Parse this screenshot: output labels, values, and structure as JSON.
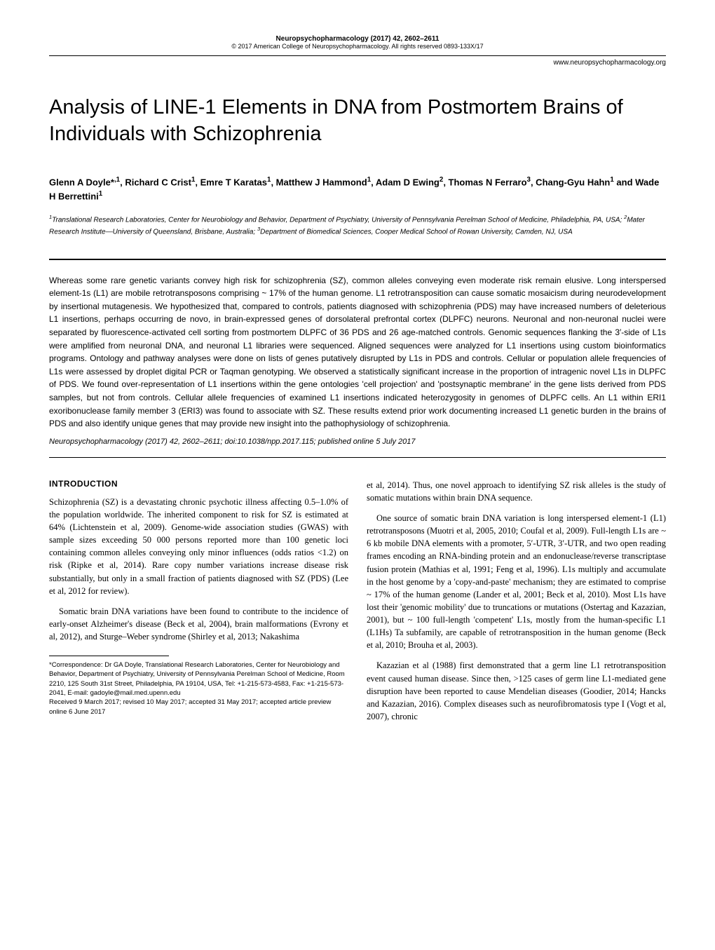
{
  "header": {
    "journal_ref": "Neuropsychopharmacology (2017) 42, 2602–2611",
    "copyright": "© 2017 American College of Neuropsychopharmacology. All rights reserved 0893-133X/17",
    "url": "www.neuropsychopharmacology.org"
  },
  "title": "Analysis of LINE-1 Elements in DNA from Postmortem Brains of Individuals with Schizophrenia",
  "authors_html": "Glenn A Doyle*,1, Richard C Crist1, Emre T Karatas1, Matthew J Hammond1, Adam D Ewing2, Thomas N Ferraro3, Chang-Gyu Hahn1 and Wade H Berrettini1",
  "affiliations": "1Translational Research Laboratories, Center for Neurobiology and Behavior, Department of Psychiatry, University of Pennsylvania Perelman School of Medicine, Philadelphia, PA, USA; 2Mater Research Institute—University of Queensland, Brisbane, Australia; 3Department of Biomedical Sciences, Cooper Medical School of Rowan University, Camden, NJ, USA",
  "abstract": "Whereas some rare genetic variants convey high risk for schizophrenia (SZ), common alleles conveying even moderate risk remain elusive. Long interspersed element-1s (L1) are mobile retrotransposons comprising ~ 17% of the human genome. L1 retrotransposition can cause somatic mosaicism during neurodevelopment by insertional mutagenesis. We hypothesized that, compared to controls, patients diagnosed with schizophrenia (PDS) may have increased numbers of deleterious L1 insertions, perhaps occurring de novo, in brain-expressed genes of dorsolateral prefrontal cortex (DLPFC) neurons. Neuronal and non-neuronal nuclei were separated by fluorescence-activated cell sorting from postmortem DLPFC of 36 PDS and 26 age-matched controls. Genomic sequences flanking the 3′-side of L1s were amplified from neuronal DNA, and neuronal L1 libraries were sequenced. Aligned sequences were analyzed for L1 insertions using custom bioinformatics programs. Ontology and pathway analyses were done on lists of genes putatively disrupted by L1s in PDS and controls. Cellular or population allele frequencies of L1s were assessed by droplet digital PCR or Taqman genotyping. We observed a statistically significant increase in the proportion of intragenic novel L1s in DLPFC of PDS. We found over-representation of L1 insertions within the gene ontologies 'cell projection' and 'postsynaptic membrane' in the gene lists derived from PDS samples, but not from controls. Cellular allele frequencies of examined L1 insertions indicated heterozygosity in genomes of DLPFC cells. An L1 within ERI1 exoribonuclease family member 3 (ERI3) was found to associate with SZ. These results extend prior work documenting increased L1 genetic burden in the brains of PDS and also identify unique genes that may provide new insight into the pathophysiology of schizophrenia.",
  "citation": "Neuropsychopharmacology (2017) 42, 2602–2611; doi:10.1038/npp.2017.115; published online 5 July 2017",
  "intro_heading": "INTRODUCTION",
  "intro": {
    "p1": "Schizophrenia (SZ) is a devastating chronic psychotic illness affecting 0.5–1.0% of the population worldwide. The inherited component to risk for SZ is estimated at 64% (Lichtenstein et al, 2009). Genome-wide association studies (GWAS) with sample sizes exceeding 50 000 persons reported more than 100 genetic loci containing common alleles conveying only minor influences (odds ratios <1.2) on risk (Ripke et al, 2014). Rare copy number variations increase disease risk substantially, but only in a small fraction of patients diagnosed with SZ (PDS) (Lee et al, 2012 for review).",
    "p2": "Somatic brain DNA variations have been found to contribute to the incidence of early-onset Alzheimer's disease (Beck et al, 2004), brain malformations (Evrony et al, 2012), and Sturge–Weber syndrome (Shirley et al, 2013; Nakashima",
    "p3": "et al, 2014). Thus, one novel approach to identifying SZ risk alleles is the study of somatic mutations within brain DNA sequence.",
    "p4": "One source of somatic brain DNA variation is long interspersed element-1 (L1) retrotransposons (Muotri et al, 2005, 2010; Coufal et al, 2009). Full-length L1s are ~ 6 kb mobile DNA elements with a promoter, 5′-UTR, 3′-UTR, and two open reading frames encoding an RNA-binding protein and an endonuclease/reverse transcriptase fusion protein (Mathias et al, 1991; Feng et al, 1996). L1s multiply and accumulate in the host genome by a 'copy-and-paste' mechanism; they are estimated to comprise ~ 17% of the human genome (Lander et al, 2001; Beck et al, 2010). Most L1s have lost their 'genomic mobility' due to truncations or mutations (Ostertag and Kazazian, 2001), but ~ 100 full-length 'competent' L1s, mostly from the human-specific L1 (L1Hs) Ta subfamily, are capable of retrotransposition in the human genome (Beck et al, 2010; Brouha et al, 2003).",
    "p5": "Kazazian et al (1988) first demonstrated that a germ line L1 retrotransposition event caused human disease. Since then, >125 cases of germ line L1-mediated gene disruption have been reported to cause Mendelian diseases (Goodier, 2014; Hancks and Kazazian, 2016). Complex diseases such as neurofibromatosis type I (Vogt et al, 2007), chronic"
  },
  "footnote": {
    "correspondence": "*Correspondence: Dr GA Doyle, Translational Research Laboratories, Center for Neurobiology and Behavior, Department of Psychiatry, University of Pennsylvania Perelman School of Medicine, Room 2210, 125 South 31st Street, Philadelphia, PA 19104, USA, Tel: +1-215-573-4583, Fax: +1-215-573-2041, E-mail: gadoyle@mail.med.upenn.edu",
    "dates": "Received 9 March 2017; revised 10 May 2017; accepted 31 May 2017; accepted article preview online 6 June 2017"
  }
}
